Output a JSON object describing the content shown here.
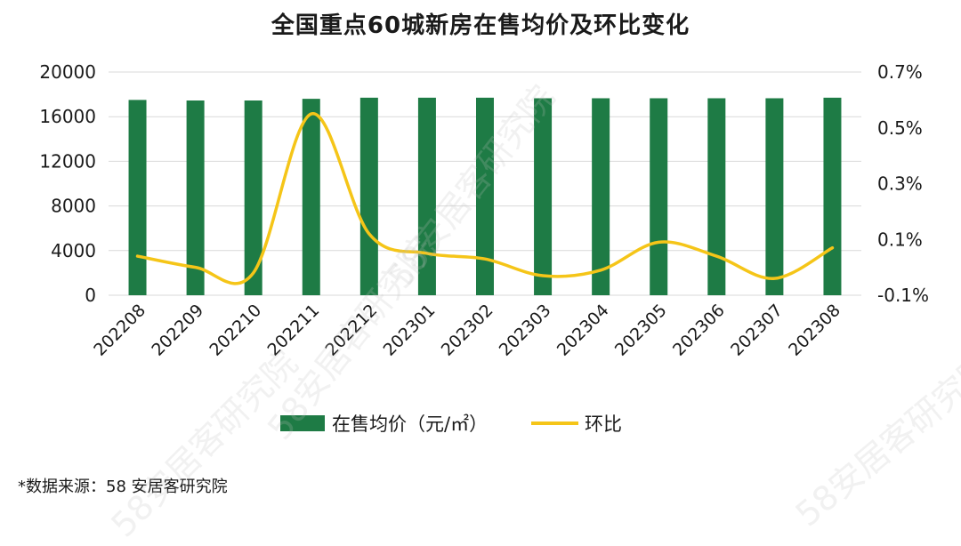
{
  "chart_data": {
    "type": "bar+line",
    "title": "全国重点60城新房在售均价及环比变化",
    "categories": [
      "202208",
      "202209",
      "202210",
      "202211",
      "202212",
      "202301",
      "202302",
      "202303",
      "202304",
      "202305",
      "202306",
      "202307",
      "202308"
    ],
    "series": [
      {
        "name": "在售均价（元/㎡）",
        "type": "bar",
        "axis": "left",
        "color": "#1e7b45",
        "values": [
          17500,
          17450,
          17450,
          17600,
          17700,
          17700,
          17700,
          17650,
          17650,
          17650,
          17650,
          17650,
          17700
        ]
      },
      {
        "name": "环比",
        "type": "line",
        "axis": "right",
        "color": "#f5c518",
        "values": [
          0.04,
          0.0,
          -0.02,
          0.55,
          0.12,
          0.05,
          0.03,
          -0.03,
          -0.01,
          0.09,
          0.04,
          -0.04,
          0.07
        ]
      }
    ],
    "left_axis": {
      "ylim": [
        0,
        20000
      ],
      "ticks": [
        "0",
        "4000",
        "8000",
        "12000",
        "16000",
        "20000"
      ]
    },
    "right_axis": {
      "ylim": [
        -0.1,
        0.7
      ],
      "ticks": [
        "-0.1%",
        "0.1%",
        "0.3%",
        "0.5%",
        "0.7%"
      ]
    },
    "legend_position": "bottom",
    "grid": "horizontal"
  },
  "source": "*数据来源：58 安居客研究院",
  "watermark": "58安居客研究院"
}
